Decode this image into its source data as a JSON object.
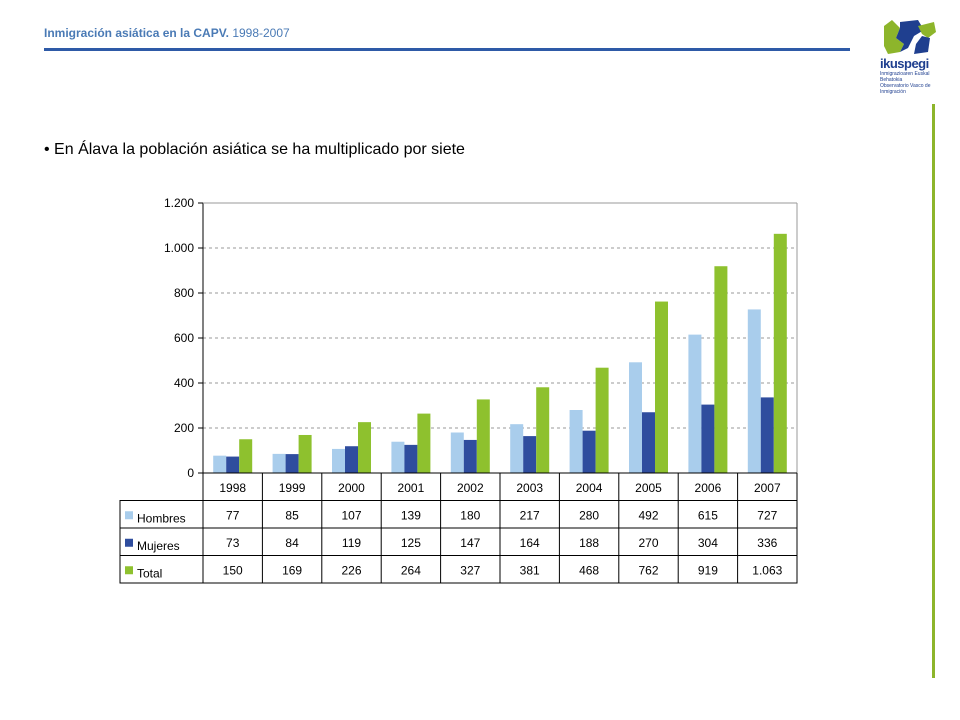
{
  "header": {
    "title": "Inmigración asiática  en la CAPV.",
    "years": "1998-2007"
  },
  "logo": {
    "name": "ikuspegi",
    "subtitle_line1": "Inmigrazioaren Euskal Behatokia",
    "subtitle_line2": "Observatorio Vasco de Inmigración"
  },
  "bullet_text": "• En Álava la población asiática se ha multiplicado por siete",
  "colors": {
    "header_rule": "#2e5aa7",
    "accent_green": "#8db52b",
    "hombres": "#a9cdec",
    "mujeres": "#2f4d9e",
    "total": "#8ec12e"
  },
  "chart_data": {
    "type": "bar",
    "title": "",
    "xlabel": "",
    "ylabel": "",
    "categories": [
      "1998",
      "1999",
      "2000",
      "2001",
      "2002",
      "2003",
      "2004",
      "2005",
      "2006",
      "2007"
    ],
    "ylim": [
      0,
      1200
    ],
    "yticks": [
      0,
      200,
      400,
      600,
      800,
      1000,
      1200
    ],
    "ytick_labels": [
      "0",
      "200",
      "400",
      "600",
      "800",
      "1.000",
      "1.200"
    ],
    "grid": true,
    "legend": "data-table",
    "series": [
      {
        "name": "Hombres",
        "values": [
          77,
          85,
          107,
          139,
          180,
          217,
          280,
          492,
          615,
          727
        ],
        "labels": [
          "77",
          "85",
          "107",
          "139",
          "180",
          "217",
          "280",
          "492",
          "615",
          "727"
        ]
      },
      {
        "name": "Mujeres",
        "values": [
          73,
          84,
          119,
          125,
          147,
          164,
          188,
          270,
          304,
          336
        ],
        "labels": [
          "73",
          "84",
          "119",
          "125",
          "147",
          "164",
          "188",
          "270",
          "304",
          "336"
        ]
      },
      {
        "name": "Total",
        "values": [
          150,
          169,
          226,
          264,
          327,
          381,
          468,
          762,
          919,
          1063
        ],
        "labels": [
          "150",
          "169",
          "226",
          "264",
          "327",
          "381",
          "468",
          "762",
          "919",
          "1.063"
        ]
      }
    ]
  }
}
